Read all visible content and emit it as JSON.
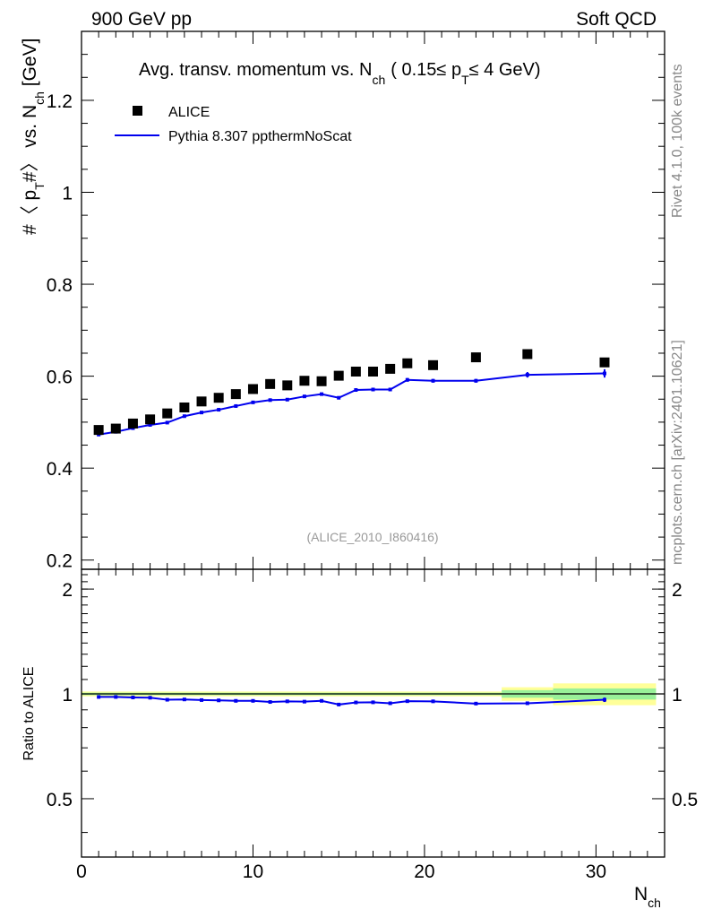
{
  "header": {
    "left_label": "900 GeV pp",
    "right_label": "Soft QCD"
  },
  "side_labels": {
    "rivet": "Rivet 4.1.0,  100k events",
    "source": "mcplots.cern.ch [arXiv:2401.10621]"
  },
  "chart_data": [
    {
      "type": "scatter",
      "panel": "main",
      "title": {
        "main": "Avg. transv. momentum vs. N",
        "sub_ch": "ch",
        "range_open": "( 0.15",
        "leq1": "≤ p",
        "sub_t": "T",
        "range_close": "≤ 4 GeV)"
      },
      "ylabel": {
        "prefix": "#〈 p",
        "sub_t": "T",
        "middle": "#〉 vs. N",
        "sub_ch": "ch",
        "suffix": " [GeV]"
      },
      "analysis_tag": "(ALICE_2010_I860416)",
      "xlim": [
        0,
        34
      ],
      "ylim": [
        0.18,
        1.35
      ],
      "y_ticks": [
        0.2,
        0.4,
        0.6,
        0.8,
        1.0,
        1.2
      ],
      "y_tick_labels": [
        "0.2",
        "0.4",
        "0.6",
        "0.8",
        "1",
        "1.2"
      ],
      "legend": {
        "placement": "top-left",
        "data_label": "ALICE",
        "mc_label": "Pythia 8.307 ppthermNoScat"
      },
      "series": [
        {
          "name": "ALICE",
          "style": "marker",
          "color": "#000000",
          "x": [
            1,
            2,
            3,
            4,
            5,
            6,
            7,
            8,
            9,
            10,
            11,
            12,
            13,
            14,
            15,
            16,
            17,
            18,
            19,
            20.5,
            23,
            26,
            30.5
          ],
          "y": [
            0.483,
            0.486,
            0.497,
            0.506,
            0.519,
            0.532,
            0.545,
            0.553,
            0.561,
            0.572,
            0.583,
            0.58,
            0.59,
            0.589,
            0.601,
            0.61,
            0.61,
            0.616,
            0.628,
            0.624,
            0.641,
            0.648,
            0.63
          ]
        },
        {
          "name": "Pythia 8.307 ppthermNoScat",
          "style": "line",
          "color": "#0000ee",
          "x": [
            1,
            2,
            3,
            4,
            5,
            6,
            7,
            8,
            9,
            10,
            11,
            12,
            13,
            14,
            15,
            16,
            17,
            18,
            19,
            20.5,
            23,
            26,
            30.5
          ],
          "y": [
            0.473,
            0.479,
            0.487,
            0.494,
            0.499,
            0.513,
            0.521,
            0.527,
            0.535,
            0.543,
            0.548,
            0.549,
            0.556,
            0.561,
            0.553,
            0.57,
            0.571,
            0.571,
            0.592,
            0.59,
            0.59,
            0.603,
            0.606
          ],
          "err": [
            0.002,
            0.002,
            0.002,
            0.002,
            0.002,
            0.002,
            0.002,
            0.002,
            0.002,
            0.002,
            0.002,
            0.002,
            0.002,
            0.002,
            0.003,
            0.003,
            0.003,
            0.003,
            0.004,
            0.004,
            0.004,
            0.006,
            0.009
          ]
        }
      ]
    },
    {
      "type": "line",
      "panel": "ratio",
      "ylabel": "Ratio to ALICE",
      "xlabel": {
        "main": "N",
        "sub": "ch"
      },
      "xlim": [
        0,
        34
      ],
      "ylim": [
        0.34,
        2.28
      ],
      "x_ticks": [
        0,
        10,
        20,
        30
      ],
      "x_tick_labels": [
        "0",
        "10",
        "20",
        "30"
      ],
      "y_ticks": [
        0.5,
        1,
        2
      ],
      "y_tick_labels": [
        "0.5",
        "1",
        "2"
      ],
      "bands": [
        {
          "x0": 0,
          "x1": 24.5,
          "yellow": [
            0.984,
            1.016
          ],
          "green": [
            0.992,
            1.008
          ]
        },
        {
          "x0": 24.5,
          "x1": 27.5,
          "yellow": [
            0.955,
            1.045
          ],
          "green": [
            0.975,
            1.025
          ]
        },
        {
          "x0": 27.5,
          "x1": 33.5,
          "yellow": [
            0.928,
            1.072
          ],
          "green": [
            0.963,
            1.037
          ]
        }
      ],
      "series": [
        {
          "name": "Pythia 8.307 ppthermNoScat / ALICE",
          "color": "#0000ee",
          "x": [
            1,
            2,
            3,
            4,
            5,
            6,
            7,
            8,
            9,
            10,
            11,
            12,
            13,
            14,
            15,
            16,
            17,
            18,
            19,
            20.5,
            23,
            26,
            30.5
          ],
          "y": [
            0.98,
            0.98,
            0.977,
            0.975,
            0.962,
            0.964,
            0.96,
            0.958,
            0.955,
            0.955,
            0.948,
            0.952,
            0.95,
            0.955,
            0.932,
            0.945,
            0.946,
            0.94,
            0.953,
            0.952,
            0.938,
            0.94,
            0.962
          ],
          "err": [
            0.005,
            0.005,
            0.005,
            0.005,
            0.005,
            0.005,
            0.005,
            0.005,
            0.005,
            0.005,
            0.005,
            0.005,
            0.005,
            0.005,
            0.006,
            0.006,
            0.006,
            0.006,
            0.007,
            0.007,
            0.007,
            0.009,
            0.014
          ]
        }
      ]
    }
  ]
}
